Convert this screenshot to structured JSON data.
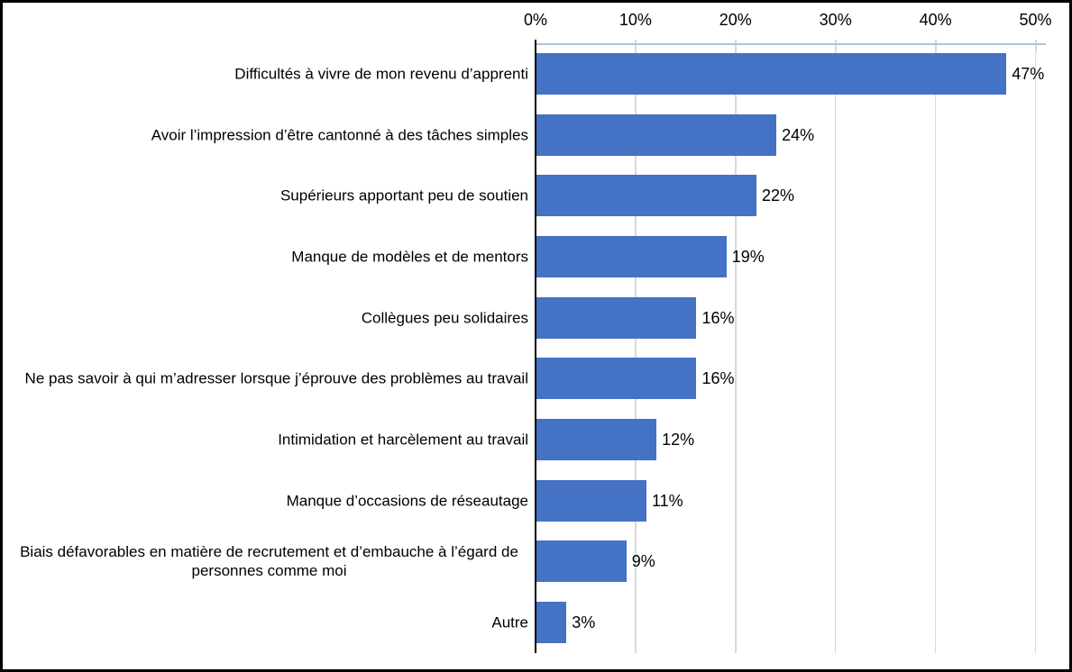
{
  "frame": {
    "background": "#ffffff",
    "border_color": "#000000"
  },
  "chart_data": {
    "type": "bar",
    "orientation": "horizontal",
    "title": "",
    "categories": [
      "Difficultés à vivre de mon revenu d’apprenti",
      "Avoir l’impression d’être cantonné à des tâches simples",
      "Supérieurs apportant peu de soutien",
      "Manque de modèles et de mentors",
      "Collègues peu solidaires",
      "Ne pas savoir à qui m’adresser lorsque j’éprouve des problèmes au travail",
      "Intimidation et harcèlement au travail",
      "Manque d’occasions de réseautage",
      "Biais défavorables en matière de recrutement et d’embauche à l’égard de personnes comme moi",
      "Autre"
    ],
    "values": [
      47,
      24,
      22,
      19,
      16,
      16,
      12,
      11,
      9,
      3
    ],
    "value_labels": [
      "47%",
      "24%",
      "22%",
      "19%",
      "16%",
      "16%",
      "12%",
      "11%",
      "9%",
      "3%"
    ],
    "x_axis": {
      "position": "top",
      "min": 0,
      "max": 50,
      "tick_values": [
        0,
        10,
        20,
        30,
        40,
        50
      ],
      "tick_labels": [
        "0%",
        "10%",
        "20%",
        "30%",
        "40%",
        "50%"
      ]
    },
    "grid": true,
    "legend": false,
    "colors": {
      "bar": "#4472C4",
      "gridline": "#D9D9D9",
      "value_axis_line": "#AFC2E2",
      "category_axis_line": "#000000",
      "text": "#000000"
    }
  }
}
